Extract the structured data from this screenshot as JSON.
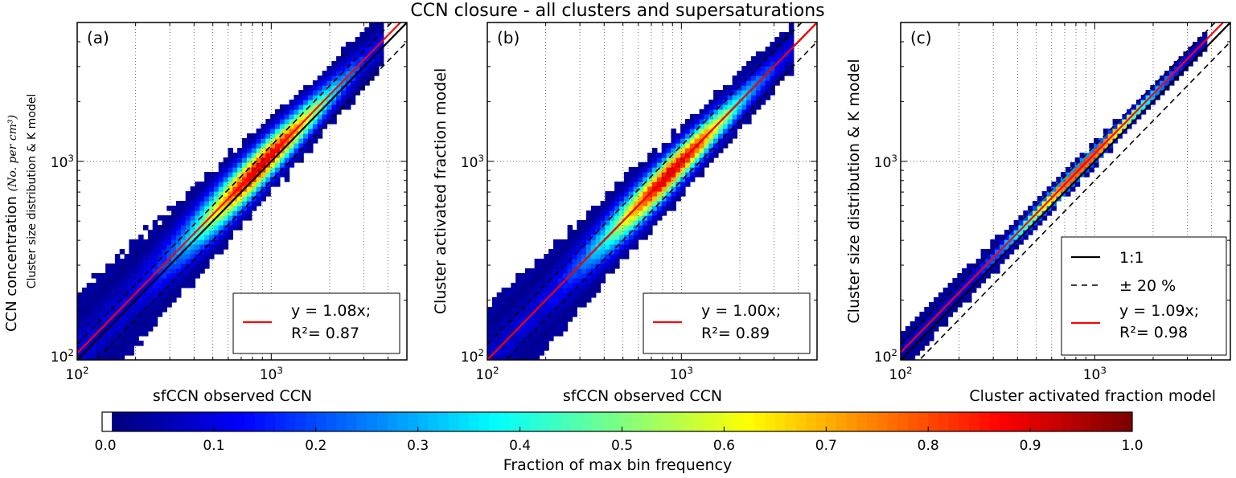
{
  "title": "CCN closure - all clusters and supersaturations",
  "chart_data": [
    {
      "type": "heatmap",
      "panel_label": "(a)",
      "xlabel": "sfCCN observed CCN",
      "ylabel": "CCN concentration",
      "ylabel_unit": "(No. per cm³)",
      "ylabel2": "Cluster size distribution & K model",
      "x_scale": "log",
      "y_scale": "log",
      "xlim": [
        100,
        5000
      ],
      "ylim": [
        100,
        5000
      ],
      "x_ticks": [
        "10²",
        "10³"
      ],
      "y_ticks": [
        "10²",
        "10³"
      ],
      "grid": true,
      "fit": {
        "slope": 1.08,
        "r2": 0.87,
        "label1": "y = 1.08x;",
        "label2": "R²= 0.87"
      },
      "spread": 0.22,
      "legend_position": "lower-right"
    },
    {
      "type": "heatmap",
      "panel_label": "(b)",
      "xlabel": "sfCCN observed CCN",
      "ylabel": "Cluster activated fraction model",
      "x_scale": "log",
      "y_scale": "log",
      "xlim": [
        100,
        5000
      ],
      "ylim": [
        100,
        5000
      ],
      "x_ticks": [
        "10²",
        "10³"
      ],
      "y_ticks": [
        "10²",
        "10³"
      ],
      "grid": true,
      "fit": {
        "slope": 1.0,
        "r2": 0.89,
        "label1": "y = 1.00x;",
        "label2": "R²= 0.89"
      },
      "spread": 0.2,
      "legend_position": "lower-right"
    },
    {
      "type": "heatmap",
      "panel_label": "(c)",
      "xlabel": "Cluster activated fraction model",
      "ylabel": "Cluster size distribution & K model",
      "x_scale": "log",
      "y_scale": "log",
      "xlim": [
        100,
        5000
      ],
      "ylim": [
        100,
        5000
      ],
      "x_ticks": [
        "10²",
        "10³"
      ],
      "y_ticks": [
        "10²",
        "10³"
      ],
      "grid": true,
      "fit": {
        "slope": 1.09,
        "r2": 0.98,
        "label1": "y = 1.09x;",
        "label2": "R²= 0.98"
      },
      "spread": 0.07,
      "legend_position": "lower-right",
      "legend": {
        "one_to_one": "1:1",
        "pm20": "± 20 %"
      }
    }
  ],
  "colorbar": {
    "label": "Fraction of max bin frequency",
    "colormap": "jet",
    "range": [
      0,
      1
    ],
    "ticks": [
      "0.0",
      "0.1",
      "0.2",
      "0.3",
      "0.4",
      "0.5",
      "0.6",
      "0.7",
      "0.8",
      "0.9",
      "1.0"
    ]
  },
  "colors": {
    "fit_line": "#ff0000",
    "one_to_one": "#000000"
  }
}
